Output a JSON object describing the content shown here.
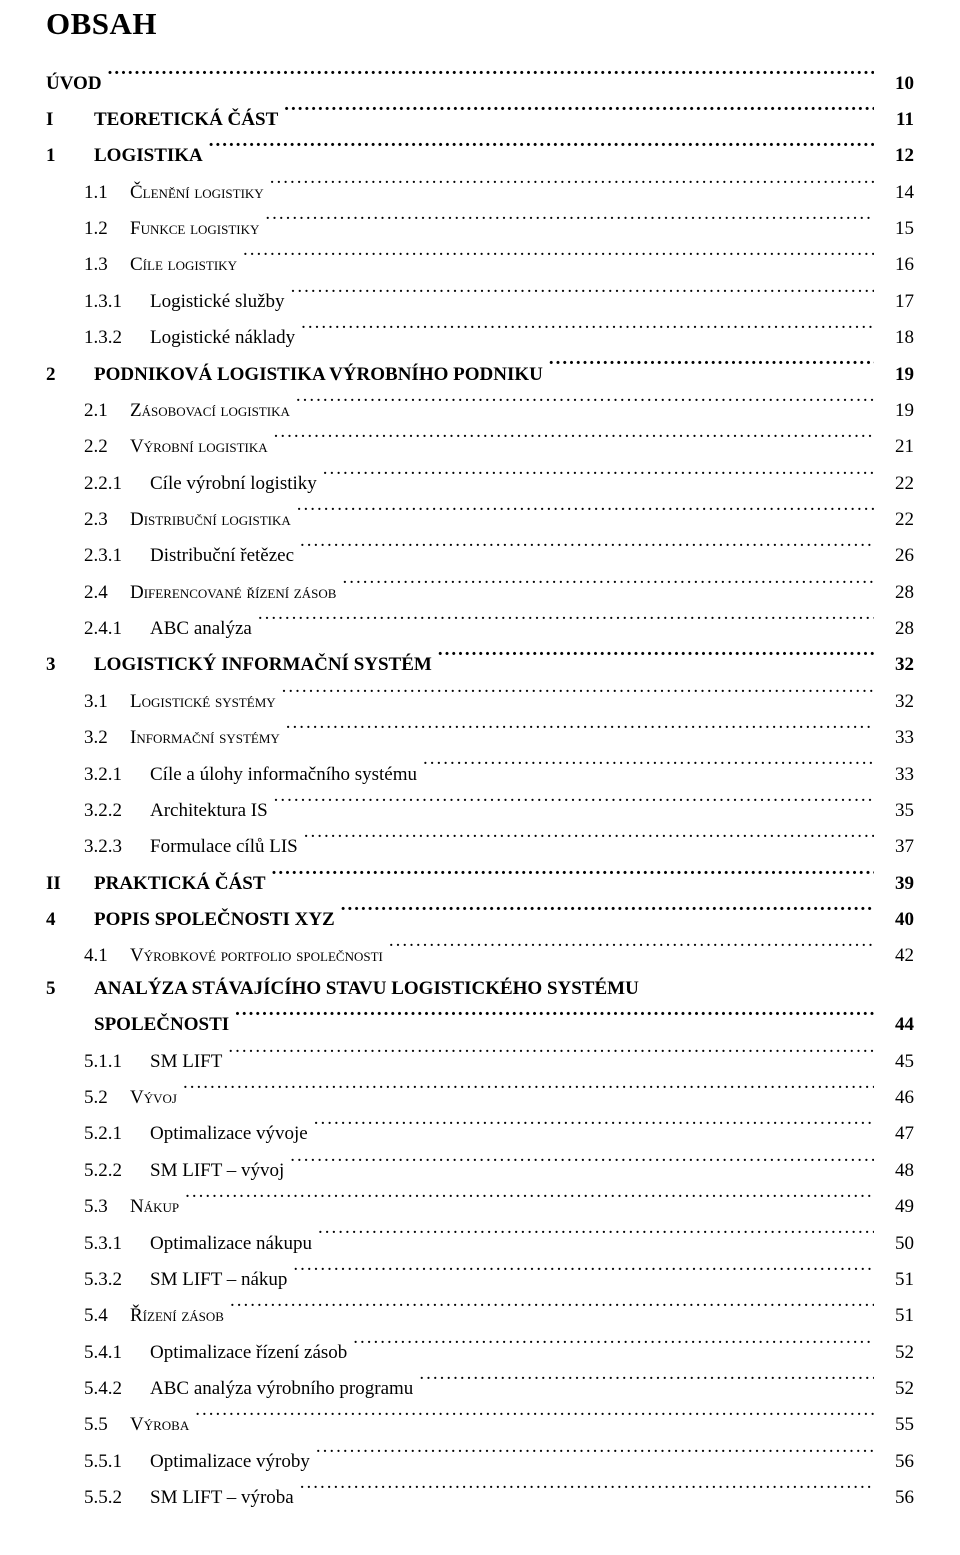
{
  "title": "OBSAH",
  "entries": [
    {
      "level": 0,
      "num": "",
      "text": "ÚVOD",
      "page": "10",
      "bold": true,
      "sc": false,
      "ind": 0
    },
    {
      "level": 0,
      "num": "I",
      "text": "TEORETICKÁ ČÁST",
      "page": "11",
      "bold": true,
      "sc": false,
      "ind": 0
    },
    {
      "level": 0,
      "num": "1",
      "text": "LOGISTIKA",
      "page": "12",
      "bold": true,
      "sc": false,
      "ind": 0
    },
    {
      "level": 1,
      "num": "1.1",
      "text": "Členění logistiky",
      "page": "14",
      "bold": false,
      "sc": true,
      "ind": 1
    },
    {
      "level": 1,
      "num": "1.2",
      "text": "Funkce logistiky",
      "page": "15",
      "bold": false,
      "sc": true,
      "ind": 1
    },
    {
      "level": 1,
      "num": "1.3",
      "text": "Cíle logistiky",
      "page": "16",
      "bold": false,
      "sc": true,
      "ind": 1
    },
    {
      "level": 2,
      "num": "1.3.1",
      "text": "Logistické služby",
      "page": "17",
      "bold": false,
      "sc": false,
      "ind": 2
    },
    {
      "level": 2,
      "num": "1.3.2",
      "text": "Logistické náklady",
      "page": "18",
      "bold": false,
      "sc": false,
      "ind": 2
    },
    {
      "level": 0,
      "num": "2",
      "text": "PODNIKOVÁ LOGISTIKA VÝROBNÍHO PODNIKU",
      "page": "19",
      "bold": true,
      "sc": false,
      "ind": 0
    },
    {
      "level": 1,
      "num": "2.1",
      "text": "Zásobovací logistika",
      "page": "19",
      "bold": false,
      "sc": true,
      "ind": 1
    },
    {
      "level": 1,
      "num": "2.2",
      "text": "Výrobní logistika",
      "page": "21",
      "bold": false,
      "sc": true,
      "ind": 1
    },
    {
      "level": 2,
      "num": "2.2.1",
      "text": "Cíle výrobní logistiky",
      "page": "22",
      "bold": false,
      "sc": false,
      "ind": 2
    },
    {
      "level": 1,
      "num": "2.3",
      "text": "Distribuční logistika",
      "page": "22",
      "bold": false,
      "sc": true,
      "ind": 1
    },
    {
      "level": 2,
      "num": "2.3.1",
      "text": "Distribuční řetězec",
      "page": "26",
      "bold": false,
      "sc": false,
      "ind": 2
    },
    {
      "level": 1,
      "num": "2.4",
      "text": "Diferencované řízení zásob",
      "page": "28",
      "bold": false,
      "sc": true,
      "ind": 1
    },
    {
      "level": 2,
      "num": "2.4.1",
      "text": "ABC analýza",
      "page": "28",
      "bold": false,
      "sc": false,
      "ind": 2
    },
    {
      "level": 0,
      "num": "3",
      "text": "LOGISTICKÝ INFORMAČNÍ SYSTÉM",
      "page": "32",
      "bold": true,
      "sc": false,
      "ind": 0
    },
    {
      "level": 1,
      "num": "3.1",
      "text": "Logistické systémy",
      "page": "32",
      "bold": false,
      "sc": true,
      "ind": 1
    },
    {
      "level": 1,
      "num": "3.2",
      "text": "Informační systémy",
      "page": "33",
      "bold": false,
      "sc": true,
      "ind": 1
    },
    {
      "level": 2,
      "num": "3.2.1",
      "text": "Cíle a úlohy informačního systému",
      "page": "33",
      "bold": false,
      "sc": false,
      "ind": 2
    },
    {
      "level": 2,
      "num": "3.2.2",
      "text": "Architektura IS",
      "page": "35",
      "bold": false,
      "sc": false,
      "ind": 2
    },
    {
      "level": 2,
      "num": "3.2.3",
      "text": "Formulace cílů LIS",
      "page": "37",
      "bold": false,
      "sc": false,
      "ind": 2
    },
    {
      "level": 0,
      "num": "II",
      "text": "PRAKTICKÁ ČÁST",
      "page": "39",
      "bold": true,
      "sc": false,
      "ind": 0
    },
    {
      "level": 0,
      "num": "4",
      "text": "POPIS SPOLEČNOSTI XYZ",
      "page": "40",
      "bold": true,
      "sc": false,
      "ind": 0
    },
    {
      "level": 1,
      "num": "4.1",
      "text": "Výrobkové portfolio společnosti",
      "page": "42",
      "bold": false,
      "sc": true,
      "ind": 1
    },
    {
      "level": 0,
      "num": "5",
      "text": "ANALÝZA STÁVAJÍCÍHO STAVU LOGISTICKÉHO SYSTÉMU",
      "text2": "SPOLEČNOSTI",
      "page": "44",
      "bold": true,
      "sc": false,
      "ind": 0,
      "wrap": true
    },
    {
      "level": 2,
      "num": "5.1.1",
      "text": "SM LIFT",
      "page": "45",
      "bold": false,
      "sc": false,
      "ind": 2
    },
    {
      "level": 1,
      "num": "5.2",
      "text": "Vývoj",
      "page": "46",
      "bold": false,
      "sc": true,
      "ind": 1
    },
    {
      "level": 2,
      "num": "5.2.1",
      "text": "Optimalizace vývoje",
      "page": "47",
      "bold": false,
      "sc": false,
      "ind": 2
    },
    {
      "level": 2,
      "num": "5.2.2",
      "text": "SM LIFT – vývoj",
      "page": "48",
      "bold": false,
      "sc": false,
      "ind": 2
    },
    {
      "level": 1,
      "num": "5.3",
      "text": "Nákup",
      "page": "49",
      "bold": false,
      "sc": true,
      "ind": 1
    },
    {
      "level": 2,
      "num": "5.3.1",
      "text": "Optimalizace nákupu",
      "page": "50",
      "bold": false,
      "sc": false,
      "ind": 2
    },
    {
      "level": 2,
      "num": "5.3.2",
      "text": "SM LIFT – nákup",
      "page": "51",
      "bold": false,
      "sc": false,
      "ind": 2
    },
    {
      "level": 1,
      "num": "5.4",
      "text": "Řízení zásob",
      "page": "51",
      "bold": false,
      "sc": true,
      "ind": 1
    },
    {
      "level": 2,
      "num": "5.4.1",
      "text": "Optimalizace řízení zásob",
      "page": "52",
      "bold": false,
      "sc": false,
      "ind": 2
    },
    {
      "level": 2,
      "num": "5.4.2",
      "text": "ABC analýza výrobního programu",
      "page": "52",
      "bold": false,
      "sc": false,
      "ind": 2
    },
    {
      "level": 1,
      "num": "5.5",
      "text": "Výroba",
      "page": "55",
      "bold": false,
      "sc": true,
      "ind": 1
    },
    {
      "level": 2,
      "num": "5.5.1",
      "text": "Optimalizace výroby",
      "page": "56",
      "bold": false,
      "sc": false,
      "ind": 2
    },
    {
      "level": 2,
      "num": "5.5.2",
      "text": "SM LIFT – výroba",
      "page": "56",
      "bold": false,
      "sc": false,
      "ind": 2
    }
  ]
}
